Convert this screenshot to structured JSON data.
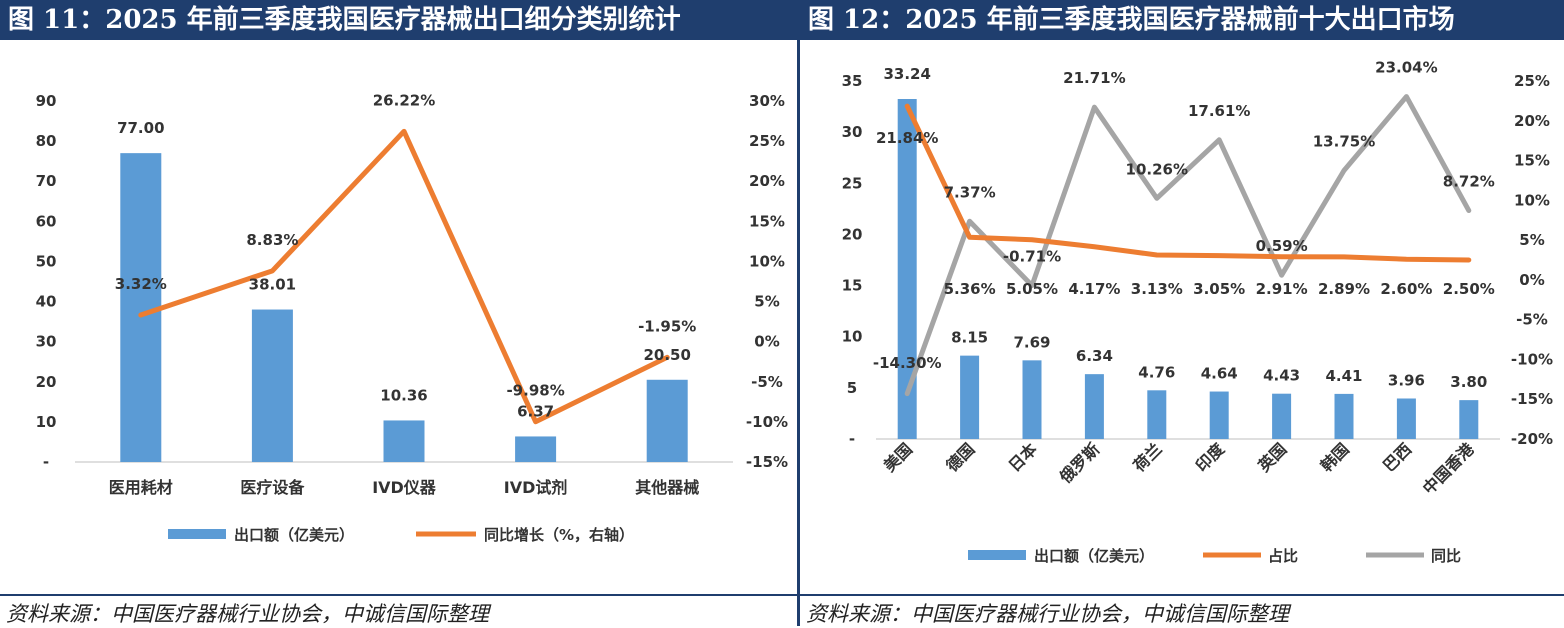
{
  "colors": {
    "bar": "#5b9bd5",
    "line_orange": "#ed7d31",
    "line_gray": "#a5a5a5",
    "title_bg": "#1f3e6e"
  },
  "chart_data": [
    {
      "type": "bar",
      "title": "图 11：2025 年前三季度我国医疗器械出口细分类别统计",
      "categories": [
        "医用耗材",
        "医疗设备",
        "IVD仪器",
        "IVD试剂",
        "其他器械"
      ],
      "series": [
        {
          "name": "出口额（亿美元）",
          "type": "bar",
          "axis": "left",
          "values": [
            77.0,
            38.01,
            10.36,
            6.37,
            20.5
          ],
          "labels": [
            "77.00",
            "38.01",
            "10.36",
            "6.37",
            "20.50"
          ]
        },
        {
          "name": "同比增长（%，右轴）",
          "type": "line",
          "axis": "right",
          "values": [
            3.32,
            8.83,
            26.22,
            -9.98,
            -1.95
          ],
          "labels": [
            "3.32%",
            "8.83%",
            "26.22%",
            "-9.98%",
            "-1.95%"
          ]
        }
      ],
      "left_axis": {
        "ylim": [
          0,
          90
        ],
        "ticks": [
          "-",
          "10",
          "20",
          "30",
          "40",
          "50",
          "60",
          "70",
          "80",
          "90"
        ]
      },
      "right_axis": {
        "ylim": [
          -15,
          30
        ],
        "ticks": [
          "-15%",
          "-10%",
          "-5%",
          "0%",
          "5%",
          "10%",
          "15%",
          "20%",
          "25%",
          "30%"
        ]
      },
      "legend": [
        "出口额（亿美元）",
        "同比增长（%，右轴）"
      ],
      "source": "资料来源：中国医疗器械行业协会，中诚信国际整理"
    },
    {
      "type": "bar",
      "title": "图 12：2025 年前三季度我国医疗器械前十大出口市场",
      "categories": [
        "美国",
        "德国",
        "日本",
        "俄罗斯",
        "荷兰",
        "印度",
        "英国",
        "韩国",
        "巴西",
        "中国香港"
      ],
      "series": [
        {
          "name": "出口额（亿美元）",
          "type": "bar",
          "axis": "left",
          "values": [
            33.24,
            8.15,
            7.69,
            6.34,
            4.76,
            4.64,
            4.43,
            4.41,
            3.96,
            3.8
          ],
          "labels": [
            "33.24",
            "8.15",
            "7.69",
            "6.34",
            "4.76",
            "4.64",
            "4.43",
            "4.41",
            "3.96",
            "3.80"
          ]
        },
        {
          "name": "占比",
          "type": "line",
          "axis": "right",
          "values": [
            21.84,
            5.36,
            5.05,
            4.17,
            3.13,
            3.05,
            2.91,
            2.89,
            2.6,
            2.5
          ],
          "labels": [
            "21.84%",
            "5.36%",
            "5.05%",
            "4.17%",
            "3.13%",
            "3.05%",
            "2.91%",
            "2.89%",
            "2.60%",
            "2.50%"
          ]
        },
        {
          "name": "同比",
          "type": "line",
          "axis": "right",
          "values": [
            -14.3,
            7.37,
            -0.71,
            21.71,
            10.26,
            17.61,
            0.59,
            13.75,
            23.04,
            8.72
          ],
          "labels": [
            "-14.30%",
            "7.37%",
            "-0.71%",
            "21.71%",
            "10.26%",
            "17.61%",
            "0.59%",
            "13.75%",
            "23.04%",
            "8.72%"
          ]
        }
      ],
      "left_axis": {
        "ylim": [
          0,
          35
        ],
        "ticks": [
          "-",
          "5",
          "10",
          "15",
          "20",
          "25",
          "30",
          "35"
        ]
      },
      "right_axis": {
        "ylim": [
          -20,
          25
        ],
        "ticks": [
          "-20%",
          "-15%",
          "-10%",
          "-5%",
          "0%",
          "5%",
          "10%",
          "15%",
          "20%",
          "25%"
        ]
      },
      "legend": [
        "出口额（亿美元）",
        "占比",
        "同比"
      ],
      "source": "资料来源：中国医疗器械行业协会，中诚信国际整理"
    }
  ]
}
